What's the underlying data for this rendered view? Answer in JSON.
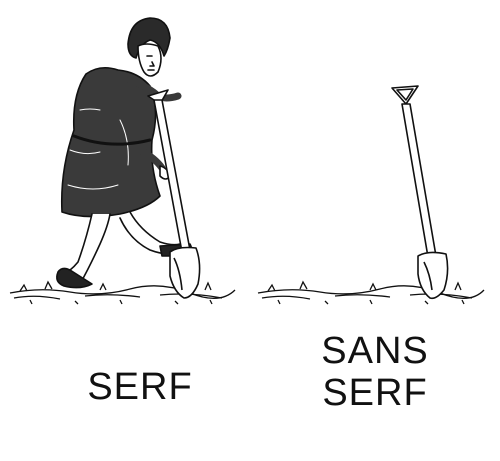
{
  "captions": {
    "left": "SERF",
    "right_line1": "SANS",
    "right_line2": "SERF"
  },
  "colors": {
    "ink": "#111111",
    "background": "#ffffff"
  }
}
